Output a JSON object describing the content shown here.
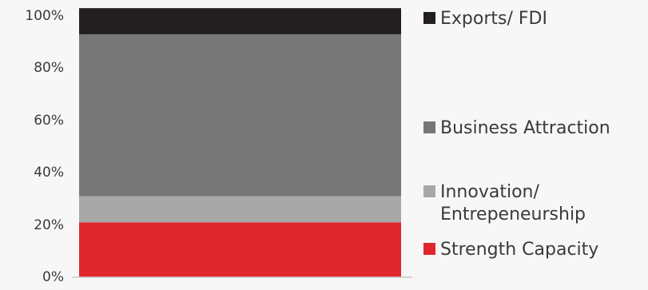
{
  "chart_data": {
    "type": "bar",
    "stacked": true,
    "categories": [
      ""
    ],
    "ylim": [
      0,
      100
    ],
    "ytick_labels": [
      "0%",
      "20%",
      "40%",
      "60%",
      "80%",
      "100%"
    ],
    "ytick_values": [
      0,
      20,
      40,
      60,
      80,
      100
    ],
    "series": [
      {
        "name": "Strength Capacity",
        "values": [
          21
        ],
        "color": "#e0262e"
      },
      {
        "name": "Innovation/ Entrepeneurship",
        "values": [
          10
        ],
        "color": "#a8a8a8"
      },
      {
        "name": "Business Attraction",
        "values": [
          62
        ],
        "color": "#777777"
      },
      {
        "name": "Exports/ FDI",
        "values": [
          10
        ],
        "color": "#231f20"
      }
    ],
    "grid": false,
    "legend": "right"
  },
  "legend": {
    "items": [
      {
        "label": "Exports/ FDI",
        "color": "#231f20"
      },
      {
        "label": "Business Attraction",
        "color": "#777777"
      },
      {
        "label": "Innovation/ Entrepeneurship",
        "color": "#a8a8a8"
      },
      {
        "label": "Strength Capacity",
        "color": "#e0262e"
      }
    ]
  }
}
